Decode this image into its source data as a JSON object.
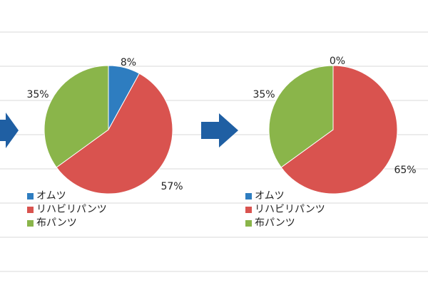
{
  "colors": {
    "background": "#ffffff",
    "grid": "#d9d9d9",
    "arrow": "#1f5fa3",
    "series": [
      "#2e7dc0",
      "#d9534f",
      "#8ab54a"
    ]
  },
  "chart_data": [
    {
      "type": "pie",
      "categories": [
        "オムツ",
        "リハビリパンツ",
        "布パンツ"
      ],
      "values": [
        8,
        57,
        35
      ],
      "data_labels": [
        "8%",
        "57%",
        "35%"
      ],
      "legend": [
        "オムツ",
        "リハビリパンツ",
        "布パンツ"
      ],
      "legend_position": "bottom-left"
    },
    {
      "type": "pie",
      "categories": [
        "オムツ",
        "リハビリパンツ",
        "布パンツ"
      ],
      "values": [
        0,
        65,
        35
      ],
      "data_labels": [
        "0%",
        "65%",
        "35%"
      ],
      "legend": [
        "オムツ",
        "リハビリパンツ",
        "布パンツ"
      ],
      "legend_position": "bottom-left"
    }
  ]
}
